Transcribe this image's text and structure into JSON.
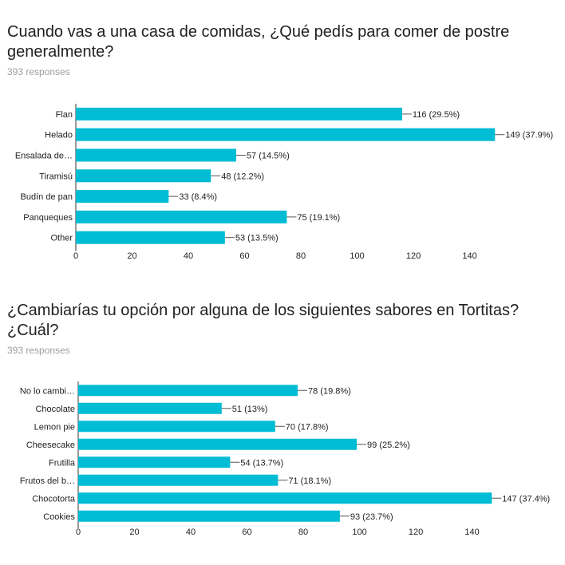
{
  "colors": {
    "bar": "#00bcd4",
    "axis": "#333333",
    "leader": "#555555",
    "text": "#212121",
    "muted": "#9e9e9e"
  },
  "chart_data": [
    {
      "type": "bar",
      "orientation": "horizontal",
      "title": "Cuando vas a una casa de comidas, ¿Qué pedís para comer de postre generalmente?",
      "subtitle": "393 responses",
      "categories": [
        "Flan",
        "Helado",
        "Ensalada de…",
        "Tiramisú",
        "Budín de pan",
        "Panqueques",
        "Other"
      ],
      "values": [
        116,
        149,
        57,
        48,
        33,
        75,
        53
      ],
      "data_labels": [
        "116 (29.5%)",
        "149 (37.9%)",
        "57 (14.5%)",
        "48 (12.2%)",
        "33 (8.4%)",
        "75 (19.1%)",
        "53 (13.5%)"
      ],
      "xticks": [
        0,
        20,
        40,
        60,
        80,
        100,
        120,
        140
      ],
      "xlim": [
        0,
        158
      ],
      "grid": false
    },
    {
      "type": "bar",
      "orientation": "horizontal",
      "title": "¿Cambiarías tu opción por alguna de los siguientes sabores en Tortitas? ¿Cuál?",
      "subtitle": "393 responses",
      "categories": [
        "No lo cambi…",
        "Chocolate",
        "Lemon pie",
        "Cheesecake",
        "Frutilla",
        "Frutos del b…",
        "Chocotorta",
        "Cookies"
      ],
      "values": [
        78,
        51,
        70,
        99,
        54,
        71,
        147,
        93
      ],
      "data_labels": [
        "78 (19.8%)",
        "51 (13%)",
        "70 (17.8%)",
        "99 (25.2%)",
        "54 (13.7%)",
        "71 (18.1%)",
        "147 (37.4%)",
        "93 (23.7%)"
      ],
      "xticks": [
        0,
        20,
        40,
        60,
        80,
        100,
        120,
        140
      ],
      "xlim": [
        0,
        156
      ],
      "grid": false
    }
  ]
}
